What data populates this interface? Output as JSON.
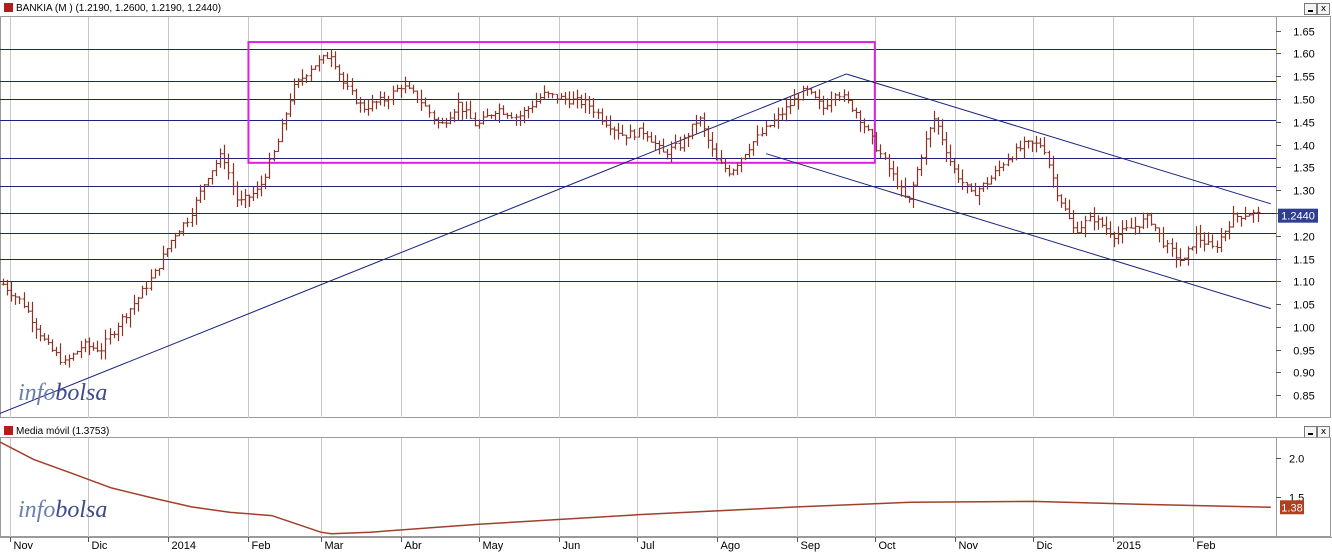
{
  "main_panel": {
    "title": "BANKIA (M ) (1.2190, 1.2600, 1.2190, 1.2440)",
    "last_value_label": "1.2440",
    "watermark": {
      "part1": "info",
      "part2": "bolsa"
    },
    "buttons": {
      "minimize": "",
      "close": "x"
    }
  },
  "indicator_panel": {
    "title": "Media móvil (1.3753)",
    "last_value_label": "1.38",
    "watermark": {
      "part1": "info",
      "part2": "bolsa"
    },
    "buttons": {
      "minimize": "",
      "close": "x"
    }
  },
  "colors": {
    "bar": "#8a3324",
    "trendline": "#1a237e",
    "grid_h": "#1a237e",
    "grid_v": "#c8c8c8",
    "rectangle": "#e020e0",
    "last_badge": "#2f3f8f",
    "ma_line": "#a0402a",
    "ma_badge": "#b04020",
    "watermark": "#3a4a8a"
  },
  "chart_data": [
    {
      "type": "line",
      "subtype": "ohlc-bars",
      "title": "BANKIA (M ) (1.2190, 1.2600, 1.2190, 1.2440)",
      "xlabel": "",
      "ylabel": "",
      "ylim": [
        0.8,
        1.68
      ],
      "yticks": [
        "1.65",
        "1.60",
        "1.55",
        "1.50",
        "1.45",
        "1.40",
        "1.35",
        "1.30",
        "1.25",
        "1.20",
        "1.15",
        "1.10",
        "1.05",
        "1.00",
        "0.95",
        "0.90",
        "0.85"
      ],
      "months": [
        "Nov",
        "Dic",
        "2014",
        "Feb",
        "Mar",
        "Abr",
        "May",
        "Jun",
        "Jul",
        "Ago",
        "Sep",
        "Oct",
        "Nov",
        "Dic",
        "2015",
        "Feb"
      ],
      "axis_start": "2013-10-28",
      "axis_end": "2015-03-05",
      "month_ticks": [
        "2013-11-01",
        "2013-12-01",
        "2014-01-01",
        "2014-02-01",
        "2014-03-01",
        "2014-04-01",
        "2014-05-01",
        "2014-06-01",
        "2014-07-01",
        "2014-08-01",
        "2014-09-01",
        "2014-10-01",
        "2014-11-01",
        "2014-12-01",
        "2015-01-01",
        "2015-02-01"
      ],
      "grid": {
        "horizontal": true,
        "vertical": true
      },
      "support_resistance_levels": [
        1.61,
        1.54,
        1.5,
        1.455,
        1.37,
        1.31,
        1.25,
        1.205,
        1.15,
        1.1
      ],
      "price_anchors": [
        [
          "2013-10-28",
          1.1
        ],
        [
          "2013-11-06",
          1.05
        ],
        [
          "2013-11-15",
          0.96
        ],
        [
          "2013-11-22",
          0.92
        ],
        [
          "2013-11-29",
          0.96
        ],
        [
          "2013-12-06",
          0.95
        ],
        [
          "2013-12-13",
          1.01
        ],
        [
          "2013-12-20",
          1.06
        ],
        [
          "2013-12-27",
          1.12
        ],
        [
          "2014-01-03",
          1.2
        ],
        [
          "2014-01-09",
          1.24
        ],
        [
          "2014-01-16",
          1.33
        ],
        [
          "2014-01-22",
          1.38
        ],
        [
          "2014-01-28",
          1.27
        ],
        [
          "2014-02-05",
          1.3
        ],
        [
          "2014-02-12",
          1.4
        ],
        [
          "2014-02-18",
          1.52
        ],
        [
          "2014-02-25",
          1.57
        ],
        [
          "2014-03-05",
          1.6
        ],
        [
          "2014-03-10",
          1.53
        ],
        [
          "2014-03-17",
          1.48
        ],
        [
          "2014-03-26",
          1.5
        ],
        [
          "2014-04-01",
          1.53
        ],
        [
          "2014-04-08",
          1.5
        ],
        [
          "2014-04-16",
          1.44
        ],
        [
          "2014-04-23",
          1.49
        ],
        [
          "2014-04-30",
          1.44
        ],
        [
          "2014-05-08",
          1.48
        ],
        [
          "2014-05-16",
          1.46
        ],
        [
          "2014-05-26",
          1.51
        ],
        [
          "2014-06-03",
          1.5
        ],
        [
          "2014-06-12",
          1.49
        ],
        [
          "2014-06-19",
          1.45
        ],
        [
          "2014-06-26",
          1.42
        ],
        [
          "2014-07-04",
          1.43
        ],
        [
          "2014-07-11",
          1.38
        ],
        [
          "2014-07-18",
          1.4
        ],
        [
          "2014-07-25",
          1.46
        ],
        [
          "2014-08-01",
          1.36
        ],
        [
          "2014-08-06",
          1.34
        ],
        [
          "2014-08-14",
          1.4
        ],
        [
          "2014-08-21",
          1.44
        ],
        [
          "2014-08-28",
          1.48
        ],
        [
          "2014-09-04",
          1.52
        ],
        [
          "2014-09-11",
          1.48
        ],
        [
          "2014-09-16",
          1.52
        ],
        [
          "2014-09-24",
          1.47
        ],
        [
          "2014-10-01",
          1.4
        ],
        [
          "2014-10-07",
          1.34
        ],
        [
          "2014-10-14",
          1.27
        ],
        [
          "2014-10-20",
          1.4
        ],
        [
          "2014-10-24",
          1.46
        ],
        [
          "2014-10-31",
          1.35
        ],
        [
          "2014-11-07",
          1.29
        ],
        [
          "2014-11-14",
          1.32
        ],
        [
          "2014-11-21",
          1.37
        ],
        [
          "2014-11-28",
          1.4
        ],
        [
          "2014-12-05",
          1.4
        ],
        [
          "2014-12-10",
          1.3
        ],
        [
          "2014-12-17",
          1.21
        ],
        [
          "2014-12-24",
          1.24
        ],
        [
          "2015-01-02",
          1.2
        ],
        [
          "2015-01-09",
          1.22
        ],
        [
          "2015-01-15",
          1.24
        ],
        [
          "2015-01-21",
          1.18
        ],
        [
          "2015-01-28",
          1.14
        ],
        [
          "2015-02-02",
          1.2
        ],
        [
          "2015-02-09",
          1.17
        ],
        [
          "2015-02-16",
          1.24
        ],
        [
          "2015-02-23",
          1.25
        ],
        [
          "2015-02-27",
          1.244
        ]
      ],
      "rectangle": {
        "from": "2014-02-01",
        "to": "2014-10-01",
        "low": 1.36,
        "high": 1.625
      },
      "trendlines": [
        {
          "from": [
            "2013-10-28",
            0.81
          ],
          "to": [
            "2014-09-20",
            1.555
          ]
        },
        {
          "from": [
            "2014-09-20",
            1.555
          ],
          "to": [
            "2015-03-03",
            1.27
          ]
        },
        {
          "from": [
            "2014-08-20",
            1.38
          ],
          "to": [
            "2015-03-03",
            1.04
          ]
        }
      ],
      "last_value": 1.244
    },
    {
      "type": "line",
      "title": "Media móvil (1.3753)",
      "ylim": [
        1.0,
        2.25
      ],
      "yticks": [
        "2.0",
        "1.5"
      ],
      "points": [
        [
          "2013-10-28",
          2.2
        ],
        [
          "2013-11-10",
          1.98
        ],
        [
          "2013-11-25",
          1.8
        ],
        [
          "2013-12-10",
          1.62
        ],
        [
          "2013-12-25",
          1.5
        ],
        [
          "2014-01-10",
          1.38
        ],
        [
          "2014-01-25",
          1.31
        ],
        [
          "2014-02-10",
          1.27
        ],
        [
          "2014-02-20",
          1.16
        ],
        [
          "2014-03-01",
          1.06
        ],
        [
          "2014-03-05",
          1.04
        ],
        [
          "2014-03-20",
          1.06
        ],
        [
          "2014-05-01",
          1.16
        ],
        [
          "2014-07-01",
          1.28
        ],
        [
          "2014-09-01",
          1.38
        ],
        [
          "2014-10-15",
          1.44
        ],
        [
          "2014-12-01",
          1.45
        ],
        [
          "2015-01-15",
          1.41
        ],
        [
          "2015-03-03",
          1.375
        ]
      ],
      "last_value": 1.3753
    }
  ]
}
